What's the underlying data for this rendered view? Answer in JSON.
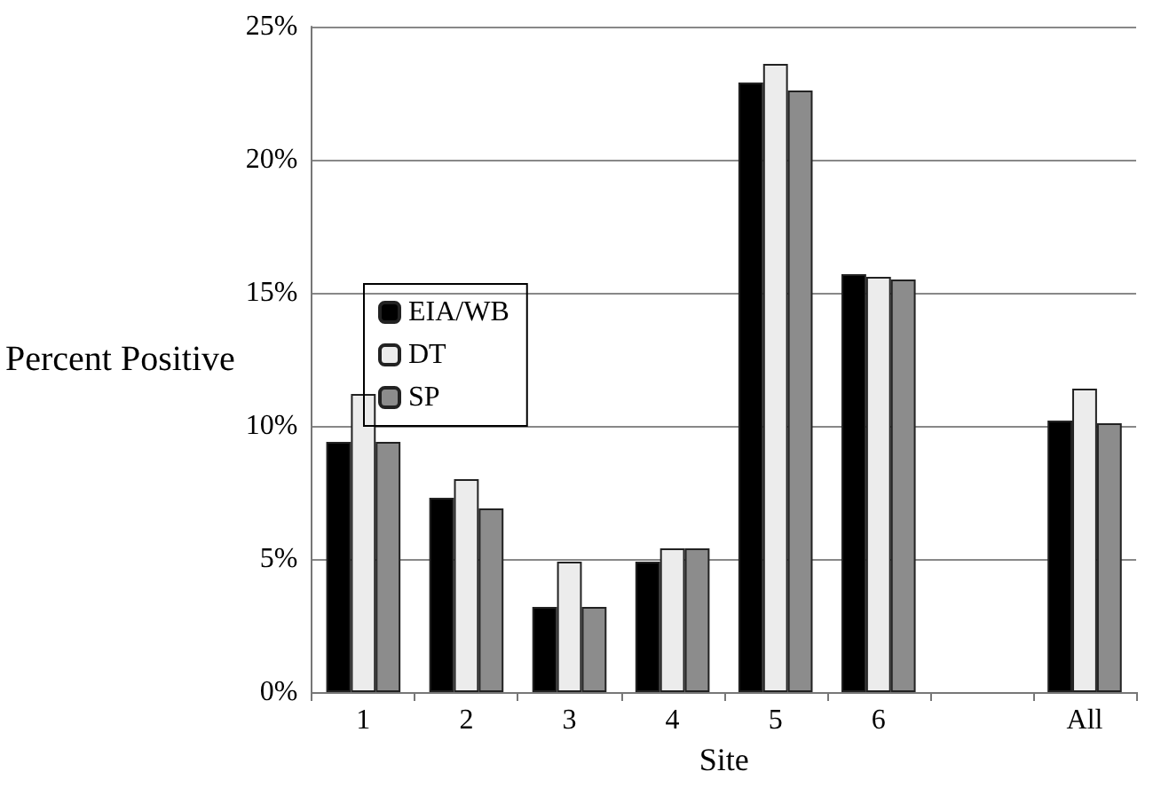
{
  "chart_data": {
    "type": "bar",
    "xlabel": "Site",
    "ylabel": "Percent Positive",
    "categories": [
      "1",
      "2",
      "3",
      "4",
      "5",
      "6",
      null,
      "All"
    ],
    "series": [
      {
        "name": "EIA/WB",
        "color": "#000000",
        "values": [
          9.4,
          7.3,
          3.2,
          4.9,
          22.9,
          15.7,
          null,
          10.2
        ]
      },
      {
        "name": "DT",
        "color": "#ececec",
        "values": [
          11.2,
          8.0,
          4.9,
          5.4,
          23.6,
          15.6,
          null,
          11.4
        ]
      },
      {
        "name": "SP",
        "color": "#8c8c8c",
        "values": [
          9.4,
          6.9,
          3.2,
          5.4,
          22.6,
          15.5,
          null,
          10.1
        ]
      }
    ],
    "ylim": [
      0,
      25
    ],
    "yticks": [
      {
        "value": 0,
        "label": "0%"
      },
      {
        "value": 5,
        "label": "5%"
      },
      {
        "value": 10,
        "label": "10%"
      },
      {
        "value": 15,
        "label": "15%"
      },
      {
        "value": 20,
        "label": "20%"
      },
      {
        "value": 25,
        "label": "25%"
      }
    ],
    "grid": "y",
    "legend": "top left"
  }
}
